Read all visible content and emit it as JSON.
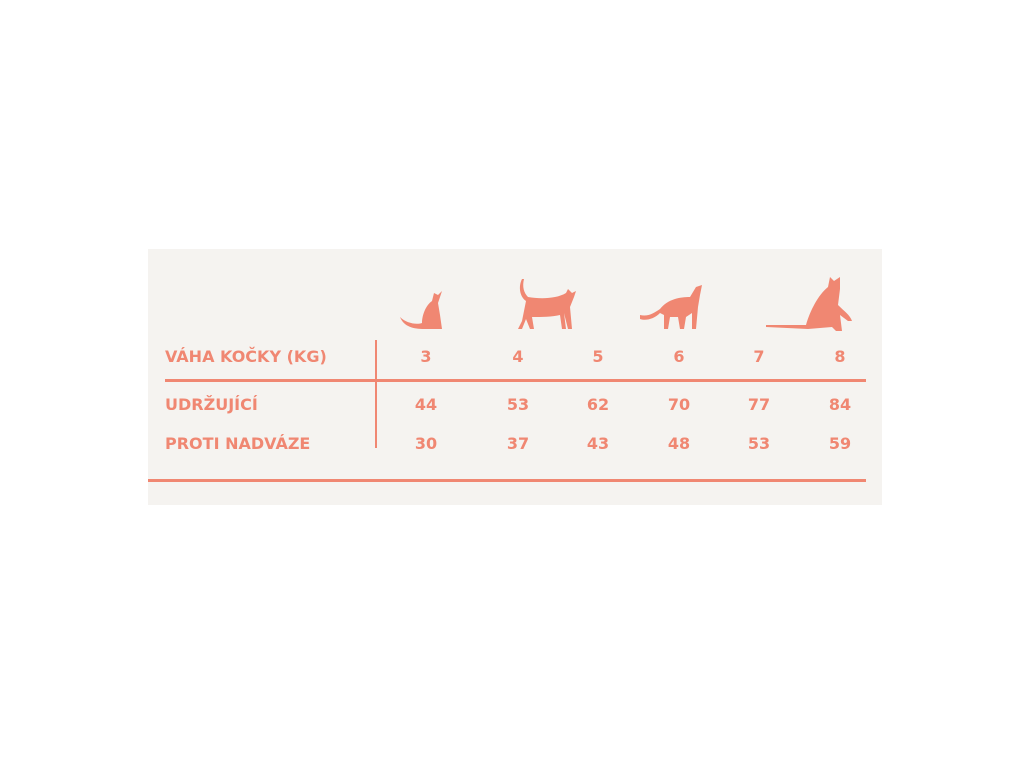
{
  "colors": {
    "accent": "#f08772",
    "background": "#f5f3f0"
  },
  "icons": [
    "cat-sitting-icon",
    "cat-walking-icon",
    "cat-stretching-icon",
    "cat-sitting-large-icon"
  ],
  "table": {
    "header": {
      "label": "VÁHA KOČKY (KG)",
      "values": [
        "3",
        "4",
        "5",
        "6",
        "7",
        "8"
      ]
    },
    "rows": [
      {
        "label": "UDRŽUJÍCÍ",
        "values": [
          "44",
          "53",
          "62",
          "70",
          "77",
          "84"
        ]
      },
      {
        "label": "PROTI NADVÁZE",
        "values": [
          "30",
          "37",
          "43",
          "48",
          "53",
          "59"
        ]
      }
    ]
  }
}
